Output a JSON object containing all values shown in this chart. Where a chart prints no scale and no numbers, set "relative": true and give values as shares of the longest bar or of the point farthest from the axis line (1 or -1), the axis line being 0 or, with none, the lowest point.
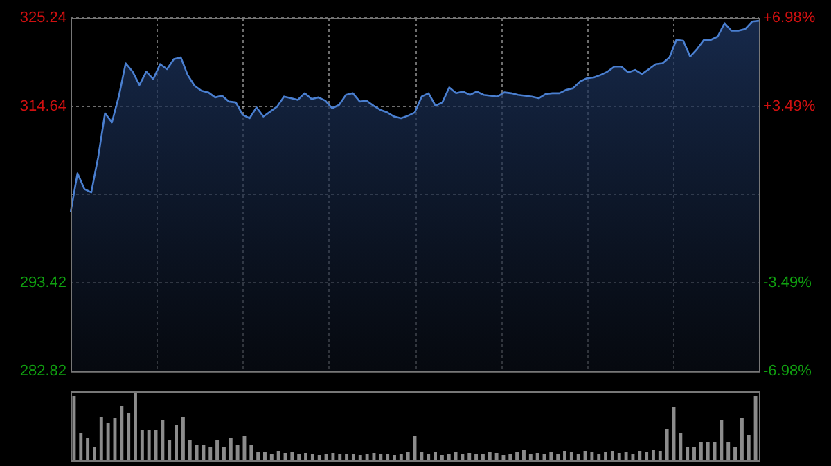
{
  "chart_data": [
    {
      "type": "area",
      "categories": [
        null,
        null,
        null,
        null,
        null,
        null,
        null,
        null,
        null,
        null,
        null,
        null,
        null,
        null,
        null,
        null,
        null,
        null,
        null,
        null,
        null,
        null,
        null,
        null,
        null,
        null,
        null,
        null,
        null,
        null,
        null,
        null,
        null,
        null,
        null,
        null,
        null,
        null,
        null,
        null,
        null,
        null,
        null,
        null,
        null,
        null,
        null,
        null,
        null,
        null,
        null,
        null,
        null,
        null,
        null,
        null,
        null,
        null,
        null,
        null,
        null,
        null,
        null,
        null,
        null,
        null,
        null,
        null,
        null,
        null,
        null,
        null,
        null,
        null,
        null,
        null,
        null,
        null,
        null,
        null,
        null,
        null,
        null,
        null,
        null,
        null,
        null,
        null,
        null,
        null,
        null,
        null,
        null,
        null,
        null,
        null,
        null,
        null,
        null,
        null,
        null
      ],
      "series": [
        {
          "color": "#4a7fd0",
          "values": [
            301.9,
            306.6,
            304.7,
            304.3,
            308.5,
            313.8,
            312.7,
            315.8,
            319.8,
            318.8,
            317.2,
            318.8,
            317.9,
            319.7,
            319.1,
            320.3,
            320.5,
            318.4,
            317.1,
            316.5,
            316.3,
            315.7,
            315.9,
            315.2,
            315.1,
            313.6,
            313.2,
            314.5,
            313.4,
            314.0,
            314.6,
            315.8,
            315.6,
            315.4,
            316.2,
            315.5,
            315.7,
            315.3,
            314.4,
            314.8,
            316.0,
            316.2,
            315.2,
            315.3,
            314.7,
            314.2,
            313.9,
            313.4,
            313.2,
            313.5,
            313.9,
            315.8,
            316.2,
            314.7,
            315.1,
            316.9,
            316.2,
            316.4,
            316.0,
            316.4,
            316.0,
            315.9,
            315.8,
            316.3,
            316.2,
            316.0,
            315.9,
            315.8,
            315.6,
            316.1,
            316.2,
            316.2,
            316.6,
            316.8,
            317.6,
            318.0,
            318.1,
            318.4,
            318.8,
            319.4,
            319.4,
            318.7,
            319.0,
            318.5,
            319.1,
            319.7,
            319.8,
            320.5,
            322.6,
            322.5,
            320.6,
            321.5,
            322.6,
            322.6,
            323.0,
            324.6,
            323.7,
            323.7,
            323.9,
            324.8,
            324.9
          ]
        }
      ],
      "ylim": [
        282.82,
        325.24
      ],
      "yticks": [
        282.82,
        293.42,
        {
          "value": 304.03,
          "label": null
        },
        314.64,
        325.24
      ],
      "y2lim": [
        -6.98,
        6.98
      ],
      "y2ticks": [
        {
          "value": -6.98,
          "label": "-6.98%"
        },
        {
          "value": -3.49,
          "label": "-3.49%"
        },
        {
          "value": 3.49,
          "label": "+3.49%"
        },
        {
          "value": 6.98,
          "label": "+6.98%"
        }
      ],
      "grid": true
    },
    {
      "type": "bar",
      "relative": true,
      "categories": [
        null,
        null,
        null,
        null,
        null,
        null,
        null,
        null,
        null,
        null,
        null,
        null,
        null,
        null,
        null,
        null,
        null,
        null,
        null,
        null,
        null,
        null,
        null,
        null,
        null,
        null,
        null,
        null,
        null,
        null,
        null,
        null,
        null,
        null,
        null,
        null,
        null,
        null,
        null,
        null,
        null,
        null,
        null,
        null,
        null,
        null,
        null,
        null,
        null,
        null,
        null,
        null,
        null,
        null,
        null,
        null,
        null,
        null,
        null,
        null,
        null,
        null,
        null,
        null,
        null,
        null,
        null,
        null,
        null,
        null,
        null,
        null,
        null,
        null,
        null,
        null,
        null,
        null,
        null,
        null,
        null,
        null,
        null,
        null,
        null,
        null,
        null,
        null,
        null,
        null,
        null,
        null,
        null,
        null,
        null,
        null,
        null,
        null,
        null,
        null,
        null
      ],
      "color": "#8c8c8c",
      "values": [
        0.93,
        0.4,
        0.33,
        0.19,
        0.63,
        0.54,
        0.61,
        0.79,
        0.68,
        1.0,
        0.44,
        0.44,
        0.44,
        0.58,
        0.3,
        0.51,
        0.63,
        0.3,
        0.23,
        0.23,
        0.19,
        0.3,
        0.19,
        0.33,
        0.23,
        0.35,
        0.23,
        0.12,
        0.12,
        0.1,
        0.13,
        0.11,
        0.12,
        0.1,
        0.11,
        0.09,
        0.08,
        0.1,
        0.11,
        0.09,
        0.1,
        0.09,
        0.08,
        0.1,
        0.11,
        0.09,
        0.1,
        0.08,
        0.1,
        0.12,
        0.35,
        0.12,
        0.1,
        0.12,
        0.08,
        0.1,
        0.12,
        0.1,
        0.11,
        0.09,
        0.1,
        0.12,
        0.11,
        0.08,
        0.1,
        0.12,
        0.15,
        0.1,
        0.11,
        0.09,
        0.12,
        0.1,
        0.14,
        0.12,
        0.1,
        0.13,
        0.12,
        0.1,
        0.12,
        0.14,
        0.11,
        0.12,
        0.1,
        0.13,
        0.12,
        0.15,
        0.14,
        0.46,
        0.77,
        0.4,
        0.19,
        0.19,
        0.26,
        0.26,
        0.26,
        0.58,
        0.27,
        0.19,
        0.61,
        0.37,
        0.93
      ]
    }
  ]
}
